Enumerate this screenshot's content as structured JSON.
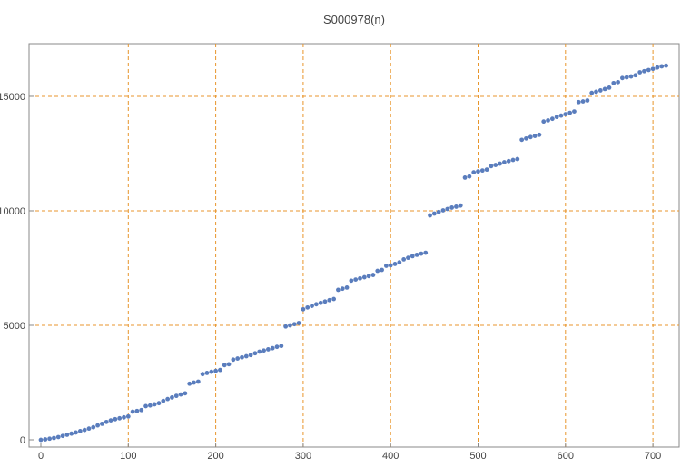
{
  "chart_data": {
    "type": "scatter",
    "title": "S000978(n)",
    "x": [
      0,
      5,
      10,
      15,
      20,
      25,
      30,
      35,
      40,
      45,
      50,
      55,
      60,
      65,
      70,
      75,
      80,
      85,
      90,
      95,
      100,
      105,
      110,
      115,
      120,
      125,
      130,
      135,
      140,
      145,
      150,
      155,
      160,
      165,
      170,
      175,
      180,
      185,
      190,
      195,
      200,
      205,
      210,
      215,
      220,
      225,
      230,
      235,
      240,
      245,
      250,
      255,
      260,
      265,
      270,
      275,
      280,
      285,
      290,
      295,
      300,
      305,
      310,
      315,
      320,
      325,
      330,
      335,
      340,
      345,
      350,
      355,
      360,
      365,
      370,
      375,
      380,
      385,
      390,
      395,
      400,
      405,
      410,
      415,
      420,
      425,
      430,
      435,
      440,
      445,
      450,
      455,
      460,
      465,
      470,
      475,
      480,
      485,
      490,
      495,
      500,
      505,
      510,
      515,
      520,
      525,
      530,
      535,
      540,
      545,
      550,
      555,
      560,
      565,
      570,
      575,
      580,
      585,
      590,
      595,
      600,
      605,
      610,
      615,
      620,
      625,
      630,
      635,
      640,
      645,
      650,
      655,
      660,
      665,
      670,
      675,
      680,
      685,
      690,
      695,
      700,
      705,
      710,
      715
    ],
    "series": [
      {
        "name": "S000978(n)",
        "color": "#5a7dbd",
        "values": [
          0,
          20,
          50,
          80,
          120,
          170,
          220,
          270,
          320,
          380,
          430,
          490,
          550,
          630,
          700,
          780,
          850,
          900,
          940,
          980,
          1020,
          1230,
          1260,
          1300,
          1470,
          1500,
          1550,
          1600,
          1700,
          1780,
          1850,
          1920,
          1980,
          2030,
          2450,
          2500,
          2540,
          2870,
          2920,
          2970,
          3010,
          3050,
          3260,
          3300,
          3500,
          3550,
          3600,
          3650,
          3700,
          3780,
          3850,
          3900,
          3950,
          4000,
          4060,
          4100,
          4950,
          5000,
          5050,
          5100,
          5700,
          5780,
          5850,
          5920,
          5980,
          6040,
          6100,
          6150,
          6550,
          6600,
          6650,
          6950,
          7000,
          7050,
          7100,
          7150,
          7200,
          7380,
          7420,
          7600,
          7620,
          7680,
          7750,
          7880,
          7950,
          8020,
          8080,
          8130,
          8170,
          9800,
          9880,
          9950,
          10020,
          10080,
          10140,
          10180,
          10230,
          11450,
          11500,
          11680,
          11720,
          11760,
          11800,
          11950,
          12000,
          12060,
          12120,
          12170,
          12220,
          12260,
          13100,
          13160,
          13220,
          13270,
          13320,
          13900,
          13950,
          14020,
          14100,
          14160,
          14220,
          14280,
          14340,
          14750,
          14780,
          14820,
          15150,
          15200,
          15260,
          15320,
          15380,
          15580,
          15620,
          15800,
          15830,
          15870,
          15920,
          16050,
          16100,
          16150,
          16200,
          16260,
          16310,
          16340
        ]
      }
    ],
    "xlim": [
      -13.5,
      730
    ],
    "ylim": [
      -317,
      17300
    ],
    "xticks": [
      0,
      100,
      200,
      300,
      400,
      500,
      600,
      700
    ],
    "yticks": [
      0,
      5000,
      10000,
      15000
    ],
    "grid": true,
    "grid_color": "#e8962c"
  }
}
